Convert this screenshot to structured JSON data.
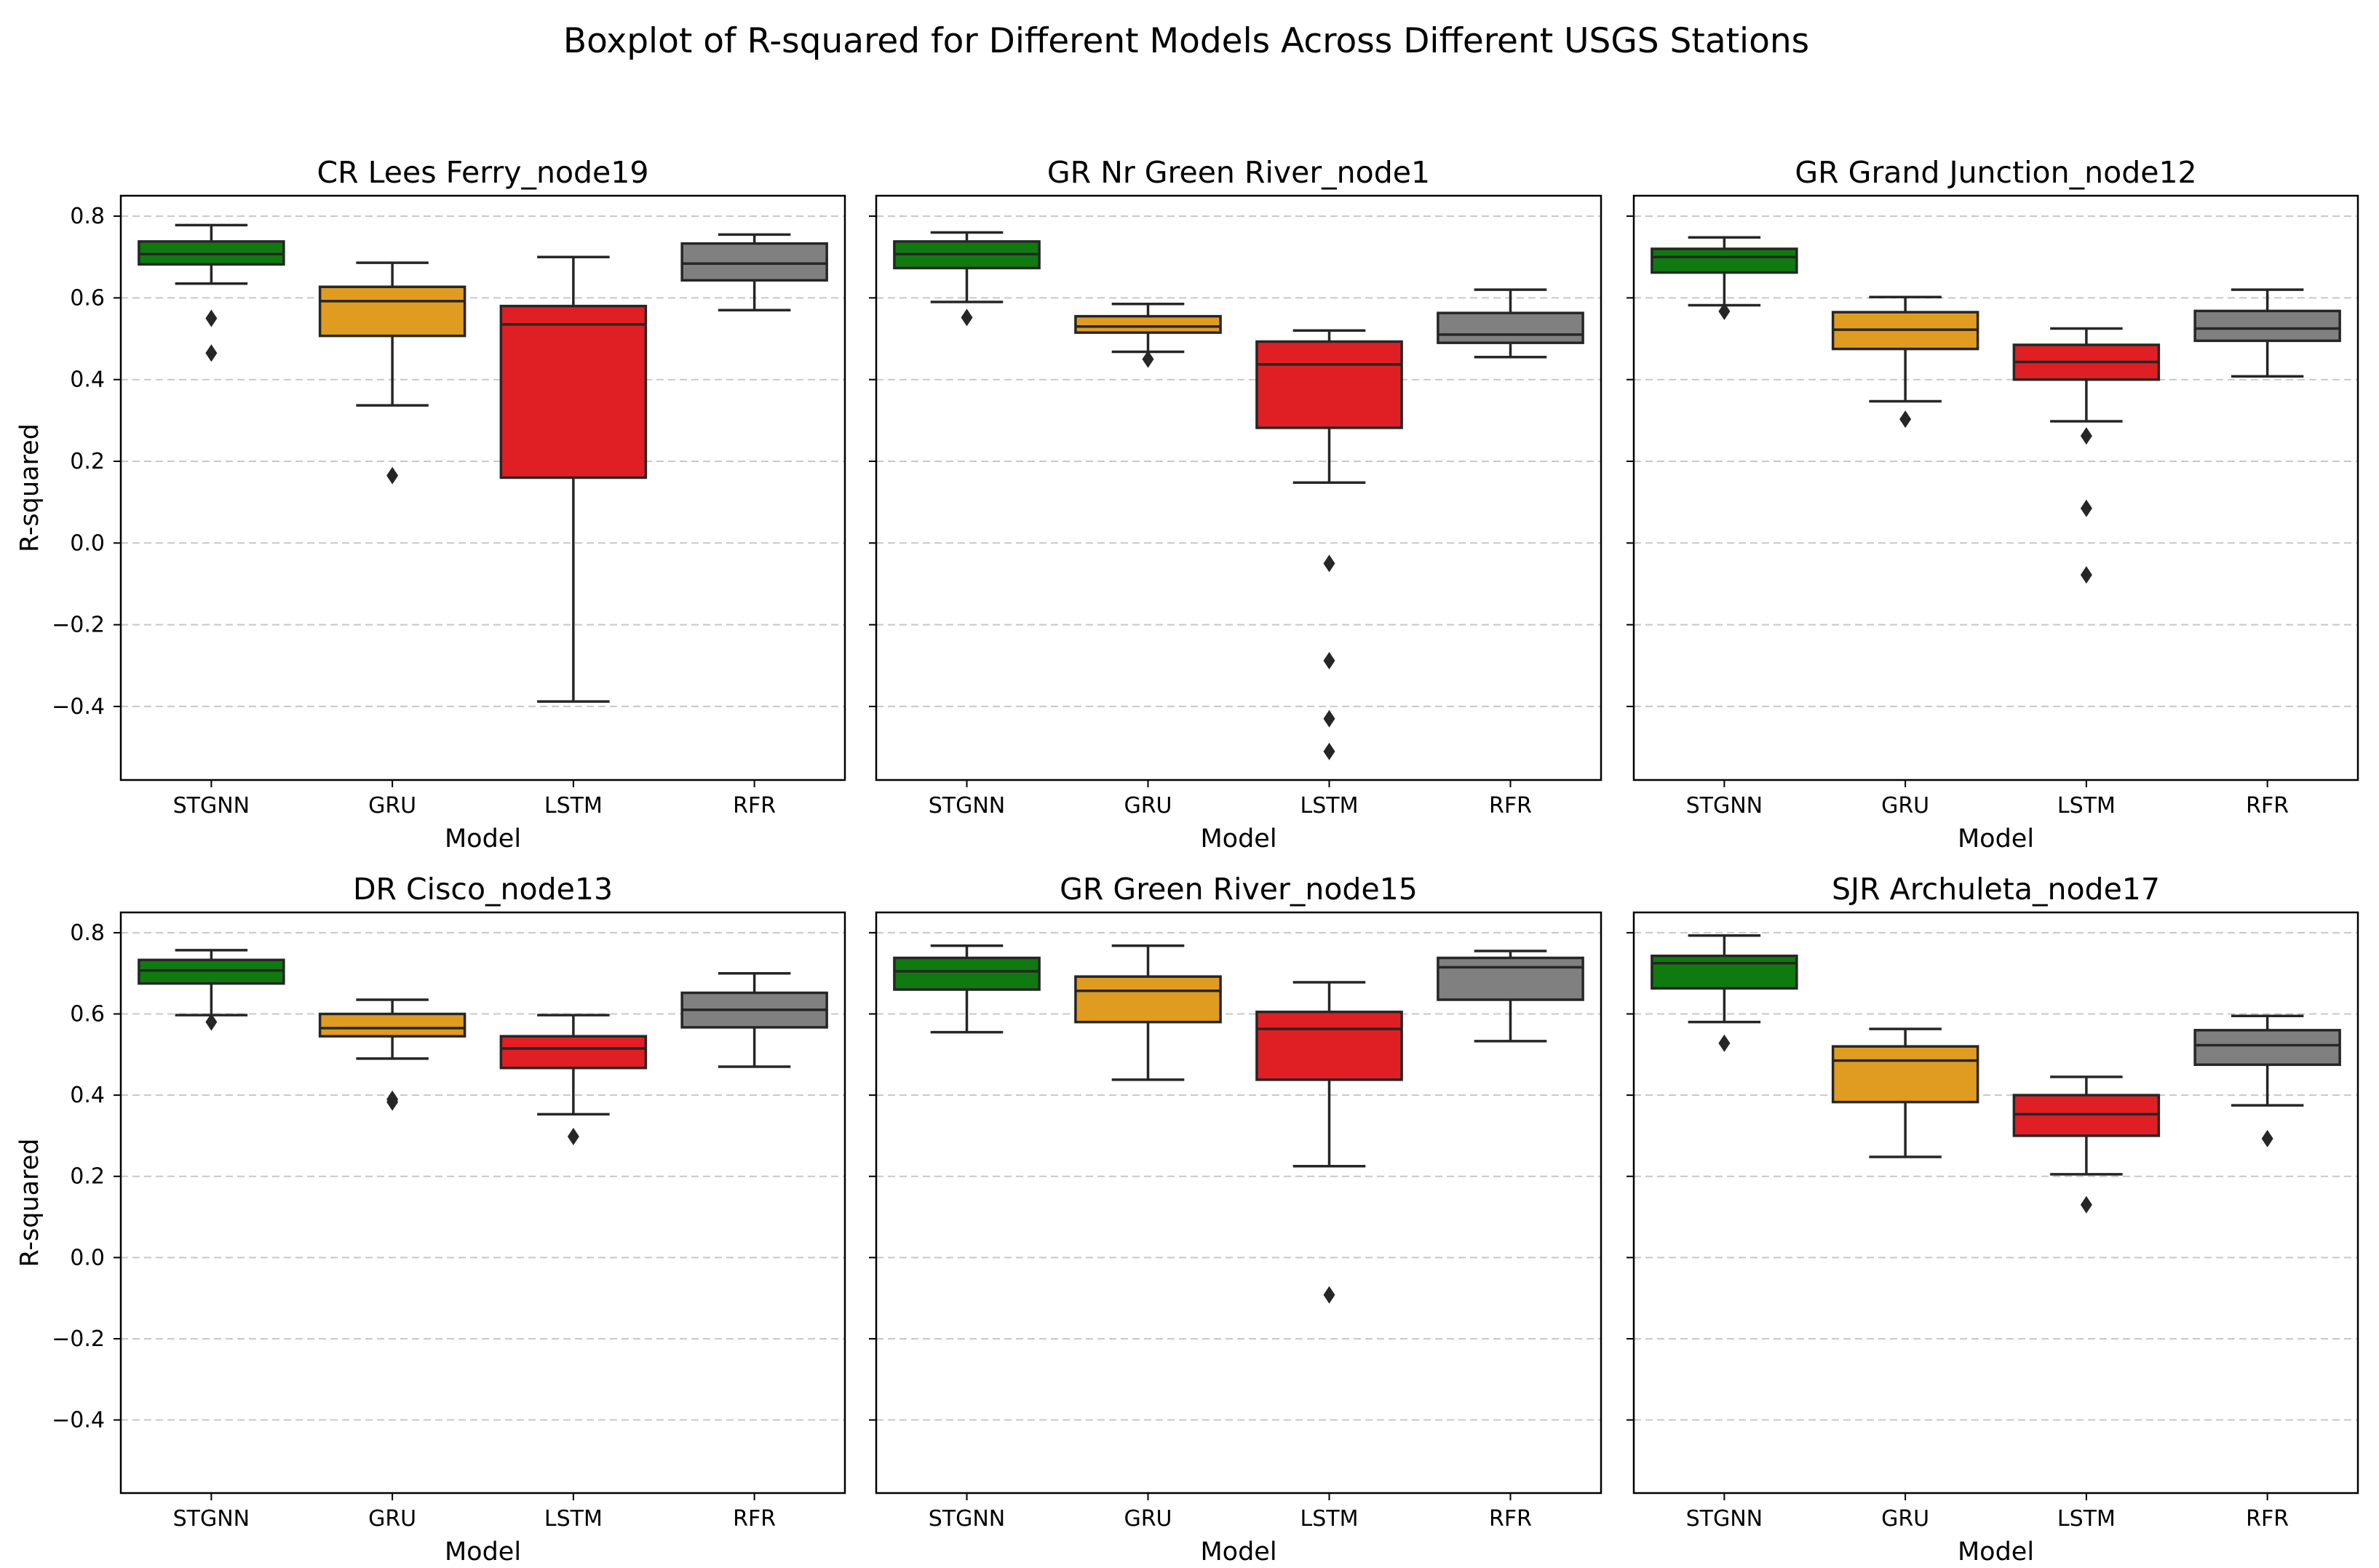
{
  "figure": {
    "title": "Boxplot of R-squared for Different Models Across Different USGS Stations"
  },
  "colors": {
    "STGNN": "#0f7a0f",
    "GRU": "#e09c21",
    "LSTM": "#e01f24",
    "RFR": "#808080",
    "outline": "#262626",
    "grid": "#c8c8c8"
  },
  "chart_data": [
    {
      "type": "box",
      "title": "CR Lees Ferry_node19",
      "xlabel": "Model",
      "ylabel": "R-squared",
      "ylim": [
        -0.58,
        0.85
      ],
      "yticks": [
        -0.4,
        -0.2,
        0.0,
        0.2,
        0.4,
        0.6,
        0.8
      ],
      "categories": [
        "STGNN",
        "GRU",
        "LSTM",
        "RFR"
      ],
      "boxes": [
        {
          "model": "STGNN",
          "whislo": 0.635,
          "q1": 0.682,
          "med": 0.707,
          "q3": 0.738,
          "whishi": 0.778,
          "fliers": [
            0.55,
            0.465
          ]
        },
        {
          "model": "GRU",
          "whislo": 0.337,
          "q1": 0.507,
          "med": 0.592,
          "q3": 0.627,
          "whishi": 0.686,
          "fliers": [
            0.165
          ]
        },
        {
          "model": "LSTM",
          "whislo": -0.388,
          "q1": 0.16,
          "med": 0.535,
          "q3": 0.58,
          "whishi": 0.7,
          "fliers": []
        },
        {
          "model": "RFR",
          "whislo": 0.57,
          "q1": 0.643,
          "med": 0.684,
          "q3": 0.733,
          "whishi": 0.755,
          "fliers": []
        }
      ]
    },
    {
      "type": "box",
      "title": "GR Nr Green River_node1",
      "xlabel": "Model",
      "ylabel": "",
      "ylim": [
        -0.58,
        0.85
      ],
      "yticks": [
        -0.4,
        -0.2,
        0.0,
        0.2,
        0.4,
        0.6,
        0.8
      ],
      "categories": [
        "STGNN",
        "GRU",
        "LSTM",
        "RFR"
      ],
      "boxes": [
        {
          "model": "STGNN",
          "whislo": 0.59,
          "q1": 0.673,
          "med": 0.707,
          "q3": 0.738,
          "whishi": 0.76,
          "fliers": [
            0.552
          ]
        },
        {
          "model": "GRU",
          "whislo": 0.468,
          "q1": 0.515,
          "med": 0.53,
          "q3": 0.555,
          "whishi": 0.585,
          "fliers": [
            0.45
          ]
        },
        {
          "model": "LSTM",
          "whislo": 0.148,
          "q1": 0.282,
          "med": 0.437,
          "q3": 0.493,
          "whishi": 0.52,
          "fliers": [
            -0.05,
            -0.288,
            -0.43,
            -0.51
          ]
        },
        {
          "model": "RFR",
          "whislo": 0.455,
          "q1": 0.49,
          "med": 0.51,
          "q3": 0.563,
          "whishi": 0.62,
          "fliers": []
        }
      ]
    },
    {
      "type": "box",
      "title": "GR Grand Junction_node12",
      "xlabel": "Model",
      "ylabel": "",
      "ylim": [
        -0.58,
        0.85
      ],
      "yticks": [
        -0.4,
        -0.2,
        0.0,
        0.2,
        0.4,
        0.6,
        0.8
      ],
      "categories": [
        "STGNN",
        "GRU",
        "LSTM",
        "RFR"
      ],
      "boxes": [
        {
          "model": "STGNN",
          "whislo": 0.582,
          "q1": 0.662,
          "med": 0.7,
          "q3": 0.72,
          "whishi": 0.748,
          "fliers": [
            0.567
          ]
        },
        {
          "model": "GRU",
          "whislo": 0.347,
          "q1": 0.475,
          "med": 0.522,
          "q3": 0.565,
          "whishi": 0.602,
          "fliers": [
            0.303
          ]
        },
        {
          "model": "LSTM",
          "whislo": 0.298,
          "q1": 0.4,
          "med": 0.443,
          "q3": 0.485,
          "whishi": 0.525,
          "fliers": [
            0.262,
            0.085,
            -0.078
          ]
        },
        {
          "model": "RFR",
          "whislo": 0.408,
          "q1": 0.495,
          "med": 0.525,
          "q3": 0.568,
          "whishi": 0.62,
          "fliers": []
        }
      ]
    },
    {
      "type": "box",
      "title": "DR Cisco_node13",
      "xlabel": "Model",
      "ylabel": "R-squared",
      "ylim": [
        -0.58,
        0.85
      ],
      "yticks": [
        -0.4,
        -0.2,
        0.0,
        0.2,
        0.4,
        0.6,
        0.8
      ],
      "categories": [
        "STGNN",
        "GRU",
        "LSTM",
        "RFR"
      ],
      "boxes": [
        {
          "model": "STGNN",
          "whislo": 0.597,
          "q1": 0.675,
          "med": 0.707,
          "q3": 0.733,
          "whishi": 0.757,
          "fliers": [
            0.58
          ]
        },
        {
          "model": "GRU",
          "whislo": 0.49,
          "q1": 0.545,
          "med": 0.565,
          "q3": 0.6,
          "whishi": 0.635,
          "fliers": [
            0.39,
            0.383
          ]
        },
        {
          "model": "LSTM",
          "whislo": 0.353,
          "q1": 0.467,
          "med": 0.515,
          "q3": 0.545,
          "whishi": 0.597,
          "fliers": [
            0.298
          ]
        },
        {
          "model": "RFR",
          "whislo": 0.47,
          "q1": 0.567,
          "med": 0.61,
          "q3": 0.652,
          "whishi": 0.7,
          "fliers": []
        }
      ]
    },
    {
      "type": "box",
      "title": "GR Green River_node15",
      "xlabel": "Model",
      "ylabel": "",
      "ylim": [
        -0.58,
        0.85
      ],
      "yticks": [
        -0.4,
        -0.2,
        0.0,
        0.2,
        0.4,
        0.6,
        0.8
      ],
      "categories": [
        "STGNN",
        "GRU",
        "LSTM",
        "RFR"
      ],
      "boxes": [
        {
          "model": "STGNN",
          "whislo": 0.555,
          "q1": 0.66,
          "med": 0.705,
          "q3": 0.738,
          "whishi": 0.768,
          "fliers": []
        },
        {
          "model": "GRU",
          "whislo": 0.438,
          "q1": 0.58,
          "med": 0.657,
          "q3": 0.692,
          "whishi": 0.768,
          "fliers": []
        },
        {
          "model": "LSTM",
          "whislo": 0.225,
          "q1": 0.438,
          "med": 0.563,
          "q3": 0.605,
          "whishi": 0.678,
          "fliers": [
            -0.092
          ]
        },
        {
          "model": "RFR",
          "whislo": 0.533,
          "q1": 0.635,
          "med": 0.715,
          "q3": 0.738,
          "whishi": 0.755,
          "fliers": []
        }
      ]
    },
    {
      "type": "box",
      "title": "SJR Archuleta_node17",
      "xlabel": "Model",
      "ylabel": "",
      "ylim": [
        -0.58,
        0.85
      ],
      "yticks": [
        -0.4,
        -0.2,
        0.0,
        0.2,
        0.4,
        0.6,
        0.8
      ],
      "categories": [
        "STGNN",
        "GRU",
        "LSTM",
        "RFR"
      ],
      "boxes": [
        {
          "model": "STGNN",
          "whislo": 0.58,
          "q1": 0.663,
          "med": 0.725,
          "q3": 0.743,
          "whishi": 0.793,
          "fliers": [
            0.528
          ]
        },
        {
          "model": "GRU",
          "whislo": 0.248,
          "q1": 0.383,
          "med": 0.485,
          "q3": 0.52,
          "whishi": 0.563,
          "fliers": []
        },
        {
          "model": "LSTM",
          "whislo": 0.205,
          "q1": 0.3,
          "med": 0.353,
          "q3": 0.4,
          "whishi": 0.445,
          "fliers": [
            0.13
          ]
        },
        {
          "model": "RFR",
          "whislo": 0.375,
          "q1": 0.475,
          "med": 0.523,
          "q3": 0.56,
          "whishi": 0.595,
          "fliers": [
            0.293
          ]
        }
      ]
    }
  ]
}
